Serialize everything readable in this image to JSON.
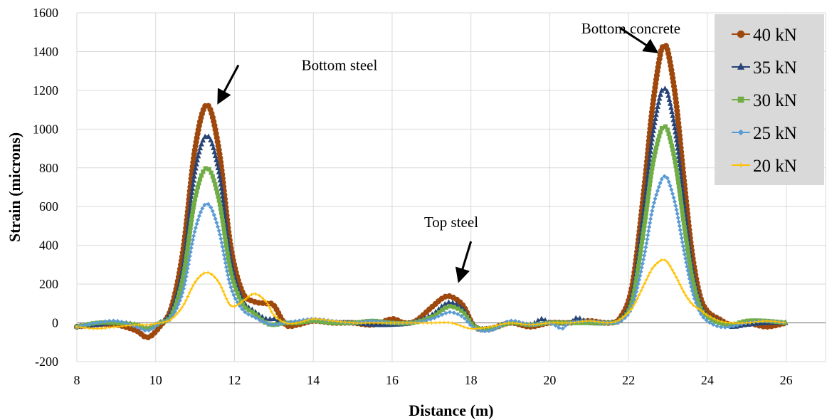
{
  "chart_data": {
    "type": "line",
    "title": "",
    "xlabel": "Distance (m)",
    "ylabel": "Strain (microns)",
    "xlim": [
      8,
      27
    ],
    "ylim": [
      -200,
      1600
    ],
    "x_ticks": [
      8,
      10,
      12,
      14,
      16,
      18,
      20,
      22,
      24,
      26
    ],
    "y_ticks": [
      -200,
      0,
      200,
      400,
      600,
      800,
      1000,
      1200,
      1400,
      1600
    ],
    "grid": true,
    "legend_position": "top-right",
    "series": [
      {
        "name": "40 kN",
        "color": "#9e480e",
        "marker": "circle",
        "x": [
          8,
          8.5,
          9,
          9.5,
          9.8,
          10.1,
          10.4,
          10.7,
          11.0,
          11.3,
          11.6,
          11.9,
          12.2,
          12.5,
          12.8,
          13.0,
          13.3,
          13.6,
          14.0,
          14.5,
          15.0,
          15.5,
          16.0,
          16.3,
          16.6,
          17.0,
          17.3,
          17.5,
          17.8,
          18.1,
          18.5,
          19.0,
          19.5,
          20.0,
          20.5,
          21.0,
          21.5,
          21.8,
          22.1,
          22.4,
          22.6,
          22.8,
          22.9,
          23.0,
          23.2,
          23.4,
          23.6,
          23.8,
          24.0,
          24.3,
          24.6,
          25.0,
          25.5,
          26.0
        ],
        "y": [
          -20,
          -10,
          -10,
          -40,
          -75,
          -20,
          80,
          380,
          900,
          1125,
          900,
          400,
          160,
          110,
          100,
          90,
          -10,
          -10,
          10,
          0,
          0,
          -10,
          20,
          0,
          10,
          80,
          130,
          135,
          90,
          -20,
          -30,
          0,
          -20,
          0,
          0,
          10,
          0,
          30,
          200,
          700,
          1100,
          1380,
          1425,
          1400,
          1150,
          750,
          380,
          150,
          60,
          20,
          -10,
          0,
          -20,
          0
        ]
      },
      {
        "name": "35 kN",
        "color": "#264478",
        "marker": "triangle",
        "x": [
          8,
          8.5,
          9,
          9.5,
          9.8,
          10.1,
          10.4,
          10.7,
          11.0,
          11.3,
          11.6,
          11.9,
          12.2,
          12.5,
          12.8,
          13.0,
          13.3,
          13.6,
          14.0,
          14.5,
          15.0,
          15.5,
          16.0,
          16.5,
          17.0,
          17.3,
          17.5,
          17.8,
          18.1,
          18.5,
          19.0,
          19.5,
          19.8,
          20.0,
          20.5,
          20.7,
          21.0,
          21.5,
          21.8,
          22.1,
          22.4,
          22.6,
          22.8,
          22.9,
          23.0,
          23.2,
          23.4,
          23.6,
          23.8,
          24.0,
          24.3,
          24.6,
          25.0,
          25.5,
          26.0
        ],
        "y": [
          -20,
          -10,
          0,
          -10,
          -30,
          0,
          60,
          300,
          780,
          965,
          780,
          330,
          120,
          60,
          20,
          20,
          0,
          0,
          10,
          0,
          0,
          -10,
          -10,
          0,
          40,
          90,
          105,
          70,
          -20,
          -30,
          0,
          -10,
          20,
          0,
          0,
          25,
          0,
          0,
          20,
          150,
          600,
          950,
          1170,
          1205,
          1180,
          970,
          620,
          300,
          110,
          40,
          10,
          -20,
          -10,
          0,
          0
        ]
      },
      {
        "name": "30 kN",
        "color": "#70ad47",
        "marker": "square",
        "x": [
          8,
          8.5,
          9,
          9.5,
          9.8,
          10.1,
          10.4,
          10.7,
          11.0,
          11.3,
          11.6,
          11.9,
          12.2,
          12.5,
          12.8,
          13.0,
          13.3,
          13.6,
          14.0,
          14.5,
          15.0,
          15.5,
          16.0,
          16.5,
          17.0,
          17.3,
          17.5,
          17.8,
          18.1,
          18.5,
          19.0,
          19.5,
          20.0,
          20.5,
          21.0,
          21.5,
          21.8,
          22.1,
          22.4,
          22.6,
          22.8,
          22.9,
          23.0,
          23.2,
          23.4,
          23.6,
          23.8,
          24.0,
          24.3,
          24.6,
          25.0,
          25.5,
          26.0
        ],
        "y": [
          -20,
          0,
          0,
          -10,
          -30,
          0,
          40,
          240,
          640,
          800,
          640,
          270,
          100,
          50,
          0,
          -10,
          0,
          0,
          10,
          0,
          0,
          10,
          0,
          0,
          30,
          70,
          85,
          55,
          -20,
          -30,
          0,
          -10,
          0,
          0,
          0,
          0,
          15,
          120,
          500,
          800,
          980,
          1010,
          990,
          810,
          520,
          250,
          90,
          30,
          0,
          -10,
          10,
          10,
          0
        ]
      },
      {
        "name": "25 kN",
        "color": "#5b9bd5",
        "marker": "diamond",
        "x": [
          8,
          8.5,
          9,
          9.5,
          9.8,
          10.1,
          10.4,
          10.7,
          11.0,
          11.3,
          11.6,
          11.9,
          12.2,
          12.5,
          12.8,
          13.0,
          13.3,
          13.6,
          14.0,
          14.5,
          15.0,
          15.5,
          16.0,
          16.5,
          17.0,
          17.3,
          17.5,
          17.8,
          18.1,
          18.5,
          19.0,
          19.5,
          20.0,
          20.3,
          20.5,
          21.0,
          21.5,
          21.8,
          22.1,
          22.4,
          22.6,
          22.8,
          22.9,
          23.0,
          23.2,
          23.4,
          23.6,
          23.8,
          24.0,
          24.3,
          24.6,
          25.0,
          25.5,
          26.0
        ],
        "y": [
          -20,
          0,
          10,
          -20,
          -40,
          0,
          30,
          170,
          480,
          615,
          480,
          190,
          70,
          30,
          0,
          -10,
          0,
          10,
          20,
          10,
          0,
          10,
          0,
          0,
          20,
          45,
          55,
          30,
          -30,
          -40,
          10,
          -10,
          0,
          -30,
          0,
          10,
          0,
          10,
          90,
          350,
          580,
          720,
          755,
          740,
          600,
          380,
          180,
          60,
          10,
          -20,
          -20,
          0,
          10,
          0
        ]
      },
      {
        "name": "20 kN",
        "color": "#ffc000",
        "marker": "plus",
        "x": [
          8,
          8.5,
          9,
          9.5,
          9.8,
          10.1,
          10.4,
          10.7,
          11.0,
          11.3,
          11.6,
          11.9,
          12.2,
          12.5,
          12.8,
          13.0,
          13.3,
          13.6,
          14.0,
          14.5,
          15.0,
          15.5,
          16.0,
          16.5,
          17.0,
          17.5,
          18.0,
          18.5,
          19.0,
          19.5,
          20.0,
          20.5,
          21.0,
          21.5,
          21.8,
          22.1,
          22.4,
          22.6,
          22.8,
          22.9,
          23.0,
          23.2,
          23.4,
          23.6,
          23.8,
          24.0,
          24.3,
          24.6,
          25.0,
          25.5,
          26.0
        ],
        "y": [
          -20,
          -30,
          -20,
          -10,
          -10,
          0,
          20,
          90,
          210,
          260,
          210,
          90,
          110,
          150,
          110,
          40,
          0,
          0,
          20,
          10,
          0,
          0,
          0,
          0,
          0,
          0,
          -30,
          -20,
          0,
          -10,
          0,
          0,
          10,
          0,
          20,
          80,
          200,
          280,
          320,
          325,
          310,
          240,
          160,
          100,
          70,
          40,
          10,
          0,
          0,
          10,
          0
        ]
      }
    ],
    "annotations": [
      {
        "text": "Bottom steel",
        "x": 13.7,
        "y": 1330,
        "arrow_from": [
          12.1,
          1330
        ],
        "arrow_to": [
          11.6,
          1140
        ]
      },
      {
        "text": "Top steel",
        "x": 17.5,
        "y": 520,
        "arrow_from": [
          18.0,
          420
        ],
        "arrow_to": [
          17.7,
          220
        ]
      },
      {
        "text": "Bottom concrete",
        "x": 20.8,
        "y": 1520,
        "arrow_from": [
          21.8,
          1520
        ],
        "arrow_to": [
          22.7,
          1400
        ]
      }
    ]
  }
}
